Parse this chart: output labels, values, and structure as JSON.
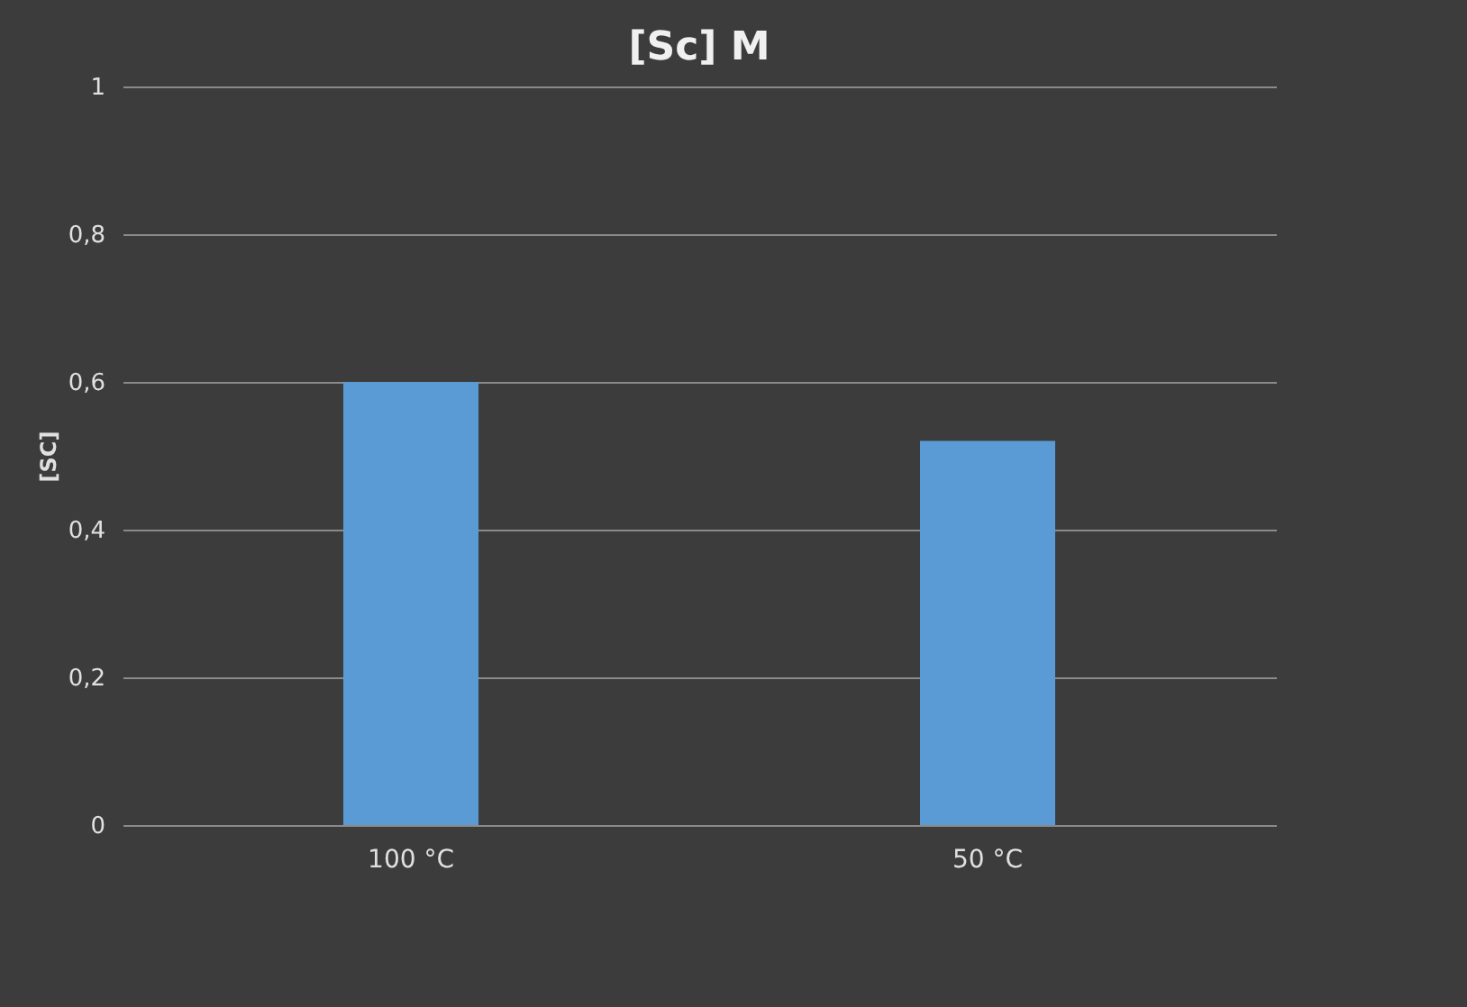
{
  "chart_data": {
    "type": "bar",
    "title": "[Sc]  M",
    "ylabel": "[SC]",
    "categories": [
      "100 °C",
      "50 °C"
    ],
    "values": [
      0.6,
      0.52
    ],
    "color": "#5b9bd5",
    "ylim": [
      0,
      1
    ],
    "yticks": [
      0,
      {
        "value": 0.2,
        "label": "0,2"
      },
      {
        "value": 0.4,
        "label": "0,4"
      },
      {
        "value": 0.6,
        "label": "0,6"
      },
      {
        "value": 0.8,
        "label": "0,8"
      },
      1
    ],
    "grid": true
  }
}
